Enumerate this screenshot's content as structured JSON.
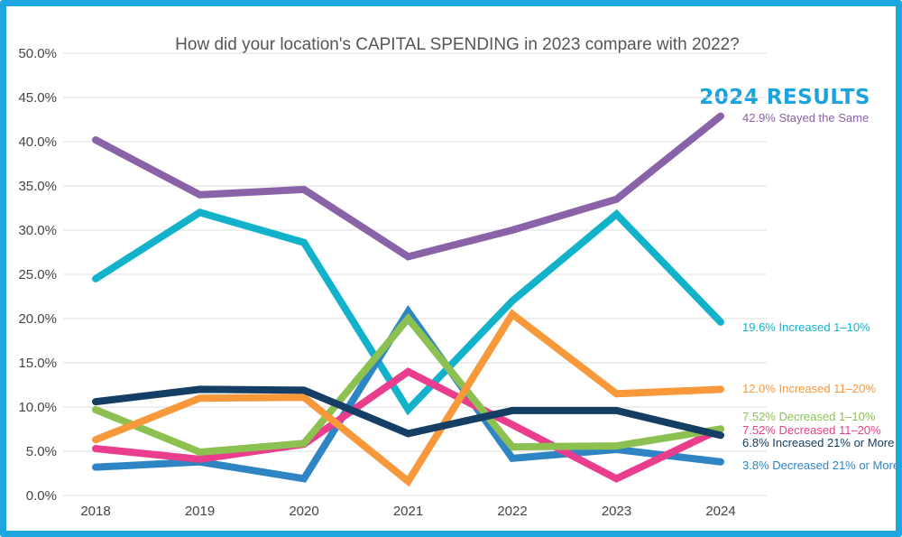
{
  "chart_data": {
    "type": "line",
    "title": "How did your location's CAPITAL SPENDING in 2023 compare with 2022?",
    "highlight_heading": "2024 RESULTS",
    "categories": [
      "2018",
      "2019",
      "2020",
      "2021",
      "2022",
      "2023",
      "2024"
    ],
    "ylim": [
      0,
      50
    ],
    "y_ticks": [
      "0.0%",
      "5.0%",
      "10.0%",
      "15.0%",
      "20.0%",
      "25.0%",
      "30.0%",
      "35.0%",
      "40.0%",
      "45.0%",
      "50.0%"
    ],
    "grid": "horizontal",
    "xlabel": "",
    "ylabel": "",
    "series": [
      {
        "values": [
          40.2,
          34.0,
          34.6,
          27.0,
          30.0,
          33.5,
          42.9
        ],
        "color": "#8a62a8",
        "end_label": "42.9% Stayed the Same"
      },
      {
        "values": [
          24.5,
          32.0,
          28.6,
          9.7,
          22.0,
          31.8,
          19.6
        ],
        "color": "#13b2cb",
        "end_label": "19.6% Increased 1–10%"
      },
      {
        "values": [
          3.2,
          3.8,
          1.9,
          20.8,
          4.2,
          5.2,
          3.8
        ],
        "color": "#2f85c3",
        "end_label": "3.8% Decreased 21% or More"
      },
      {
        "values": [
          5.3,
          4.1,
          5.8,
          14.0,
          8.0,
          1.9,
          7.52
        ],
        "color": "#ea3d8d",
        "end_label": "7.52% Decreased 11–20%"
      },
      {
        "values": [
          9.7,
          4.9,
          5.9,
          20.0,
          5.5,
          5.6,
          7.52
        ],
        "color": "#8cc152",
        "end_label": "7.52% Decreased 1–10%"
      },
      {
        "values": [
          6.3,
          11.0,
          11.1,
          1.6,
          20.5,
          11.5,
          12.0
        ],
        "color": "#f7983a",
        "end_label": "12.0% Increased 11–20%"
      },
      {
        "values": [
          10.6,
          12.0,
          11.9,
          7.0,
          9.6,
          9.6,
          6.8
        ],
        "color": "#153e64",
        "end_label": "6.8% Increased 21% or More"
      }
    ]
  }
}
